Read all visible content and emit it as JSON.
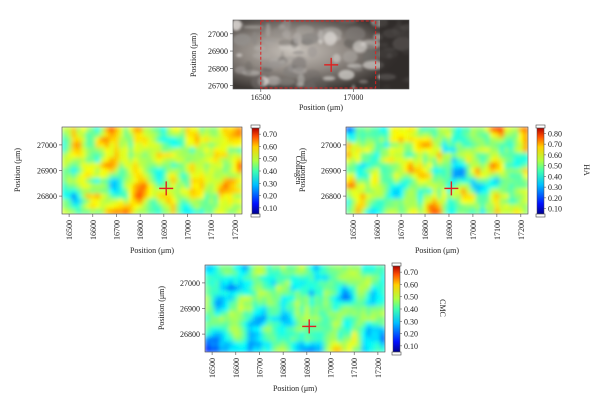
{
  "figure": {
    "axis_label_x": "Position (μm)",
    "axis_label_y": "Position (μm)",
    "marker": {
      "x": 16910,
      "y": 26830,
      "color": "#e02020"
    }
  },
  "photo_panel": {
    "type": "image",
    "x_ticks": [
      "16500",
      "17000"
    ],
    "y_ticks": [
      "27000",
      "26900",
      "26800",
      "26700"
    ],
    "xlim": [
      16350,
      17300
    ],
    "ylim": [
      26680,
      27080
    ],
    "roi_box": {
      "x0": 16500,
      "x1": 17120,
      "color": "#e02020"
    },
    "marker": {
      "x": 16880,
      "y": 26820
    }
  },
  "chart_data": [
    {
      "type": "heatmap",
      "id": "collagen",
      "colorbar_label": "Collagen",
      "colorbar_ticks": [
        "0.70",
        "0.60",
        "0.50",
        "0.40",
        "0.30",
        "0.20",
        "0.10"
      ],
      "colorbar_range": [
        0.05,
        0.75
      ],
      "x_ticks": [
        "16500",
        "16600",
        "16700",
        "16800",
        "16900",
        "17000",
        "17100",
        "17200"
      ],
      "y_ticks": [
        "27000",
        "26900",
        "26800"
      ],
      "xlim": [
        16470,
        17230
      ],
      "ylim": [
        26730,
        27070
      ],
      "marker": {
        "x": 16910,
        "y": 26830
      },
      "grid": {
        "cols": 38,
        "rows": 17,
        "seed": 7,
        "base": 0.42,
        "amp": 0.3
      }
    },
    {
      "type": "heatmap",
      "id": "ha",
      "colorbar_label": "HA",
      "colorbar_ticks": [
        "0.80",
        "0.70",
        "0.60",
        "0.50",
        "0.40",
        "0.30",
        "0.20",
        "0.10"
      ],
      "colorbar_range": [
        0.05,
        0.85
      ],
      "x_ticks": [
        "16500",
        "16600",
        "16700",
        "16800",
        "16900",
        "17000",
        "17100",
        "17200"
      ],
      "y_ticks": [
        "27000",
        "26900",
        "26800"
      ],
      "xlim": [
        16470,
        17230
      ],
      "ylim": [
        26730,
        27070
      ],
      "marker": {
        "x": 16910,
        "y": 26830
      },
      "grid": {
        "cols": 38,
        "rows": 17,
        "seed": 19,
        "base": 0.4,
        "amp": 0.34
      }
    },
    {
      "type": "heatmap",
      "id": "cmc",
      "colorbar_label": "CMC",
      "colorbar_ticks": [
        "0.70",
        "0.60",
        "0.50",
        "0.40",
        "0.30",
        "0.20",
        "0.10"
      ],
      "colorbar_range": [
        0.05,
        0.75
      ],
      "x_ticks": [
        "16500",
        "16600",
        "16700",
        "16800",
        "16900",
        "17000",
        "17100",
        "17200"
      ],
      "y_ticks": [
        "27000",
        "26900",
        "26800"
      ],
      "xlim": [
        16470,
        17230
      ],
      "ylim": [
        26730,
        27070
      ],
      "marker": {
        "x": 16910,
        "y": 26830
      },
      "grid": {
        "cols": 38,
        "rows": 17,
        "seed": 31,
        "base": 0.34,
        "amp": 0.26
      }
    }
  ]
}
